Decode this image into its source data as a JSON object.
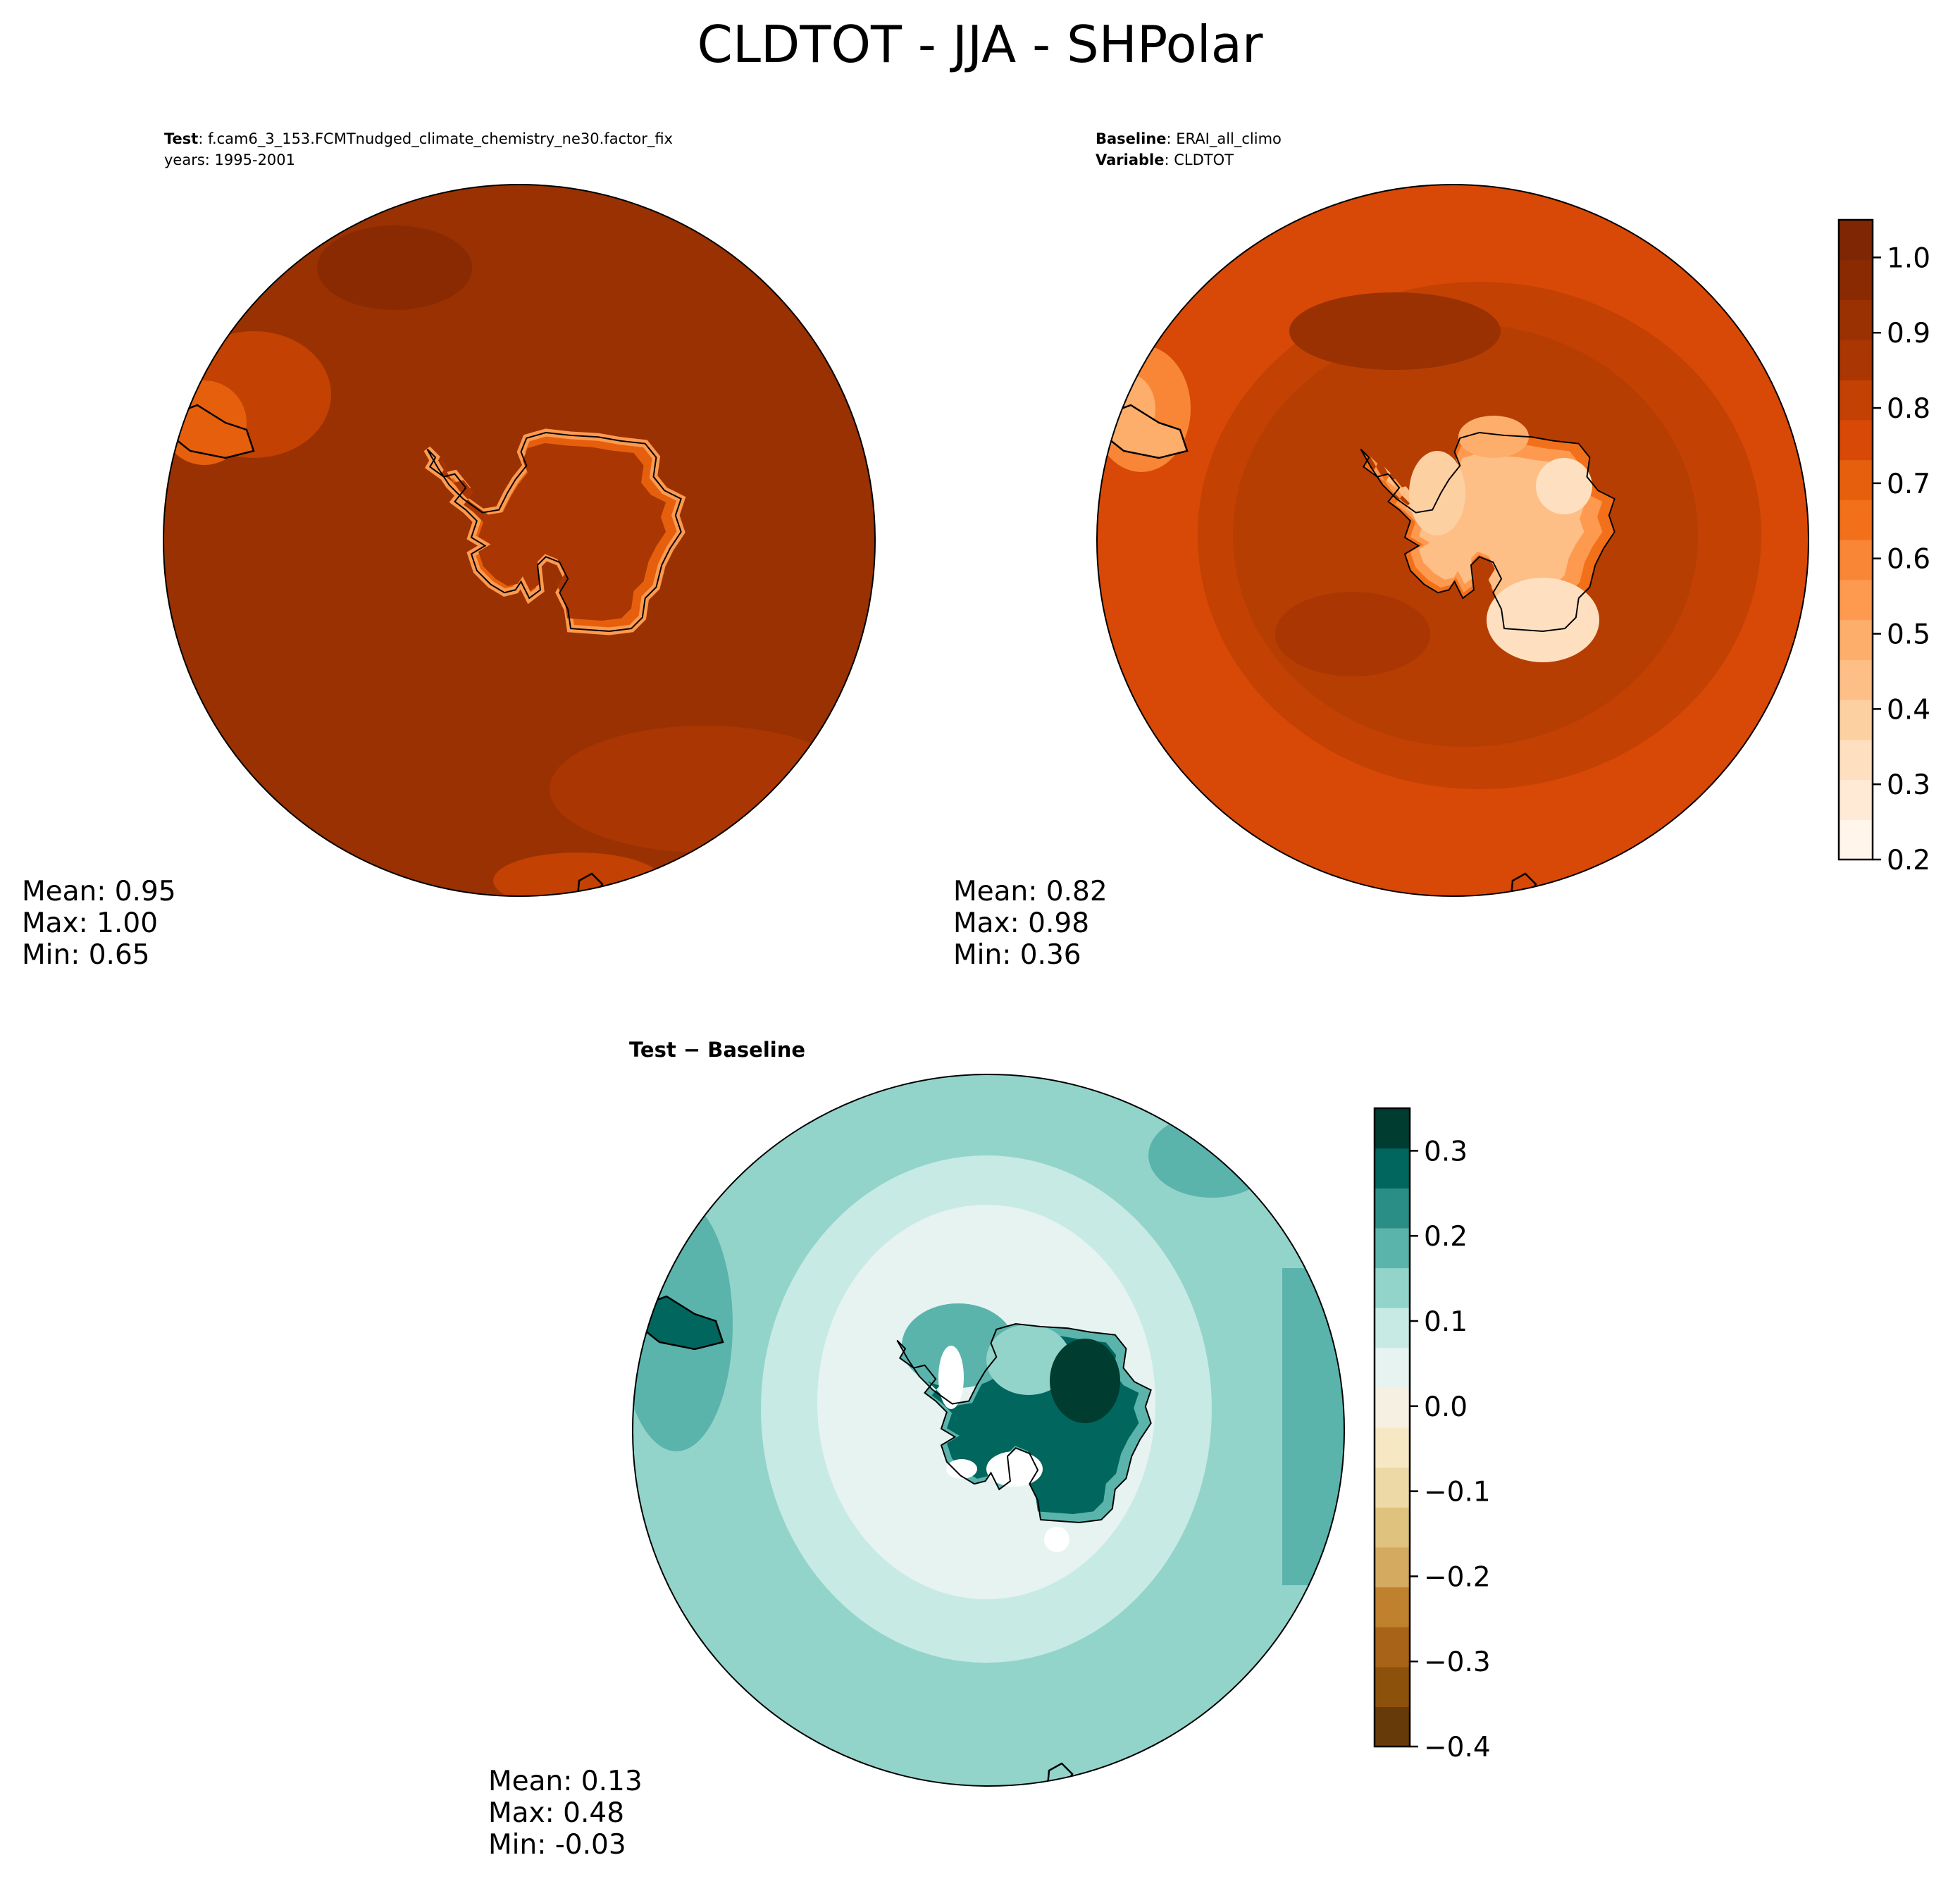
{
  "figure": {
    "title": "CLDTOT - JJA - SHPolar"
  },
  "test_panel": {
    "label_bold": "Test",
    "label_text": ": f.cam6_3_153.FCMTnudged_climate_chemistry_ne30.factor_fix",
    "years": "years: 1995-2001",
    "stats": {
      "mean": "Mean:  0.95",
      "max": "Max:  1.00",
      "min": "Min:  0.65"
    }
  },
  "baseline_panel": {
    "label_bold": "Baseline",
    "label_text": ": ERAI_all_climo",
    "variable_bold": "Variable",
    "variable_text": ": CLDTOT",
    "stats": {
      "mean": "Mean:  0.82",
      "max": "Max:  0.98",
      "min": "Min:  0.36"
    }
  },
  "diff_panel": {
    "title": "Test − Baseline",
    "stats": {
      "mean": "Mean:  0.13",
      "max": "Max:  0.48",
      "min": "Min: -0.03"
    }
  },
  "colors": {
    "test_ocean": "#993102",
    "test_coast": "#c24103",
    "baseline_ocean": "#d84806",
    "baseline_ring": "#b63e03",
    "baseline_land": "#fdbf86",
    "diff_ocean": "#93d4ca",
    "diff_ring": "#c7eae5",
    "diff_outer": "#5ab4ac",
    "diff_land": "#01665e"
  },
  "chart_data": [
    {
      "type": "heatmap",
      "name": "abs_colorbar",
      "ticks": [
        "0.2",
        "0.3",
        "0.4",
        "0.5",
        "0.6",
        "0.7",
        "0.8",
        "0.9",
        "1.0"
      ],
      "range": [
        0.2,
        1.05
      ],
      "colors": [
        "#fff5eb",
        "#feead5",
        "#fee0c1",
        "#fdd0a2",
        "#fdbf86",
        "#fdae6b",
        "#fd9a50",
        "#f98636",
        "#f3701b",
        "#e65f0d",
        "#d84806",
        "#c24103",
        "#a93603",
        "#993102",
        "#8a2a03",
        "#7f2704"
      ]
    },
    {
      "type": "heatmap",
      "name": "diff_colorbar",
      "ticks": [
        "−0.4",
        "−0.3",
        "−0.2",
        "−0.1",
        "0.0",
        "0.1",
        "0.2",
        "0.3"
      ],
      "range": [
        -0.4,
        0.35
      ],
      "colors": [
        "#673b09",
        "#8c510a",
        "#a86318",
        "#bf812d",
        "#d4a960",
        "#dfc27d",
        "#ecd9a5",
        "#f6e8c3",
        "#f5f0e1",
        "#e6f3f0",
        "#c7eae5",
        "#93d4ca",
        "#5ab4ac",
        "#2a8e87",
        "#01665e",
        "#003c30"
      ]
    }
  ]
}
